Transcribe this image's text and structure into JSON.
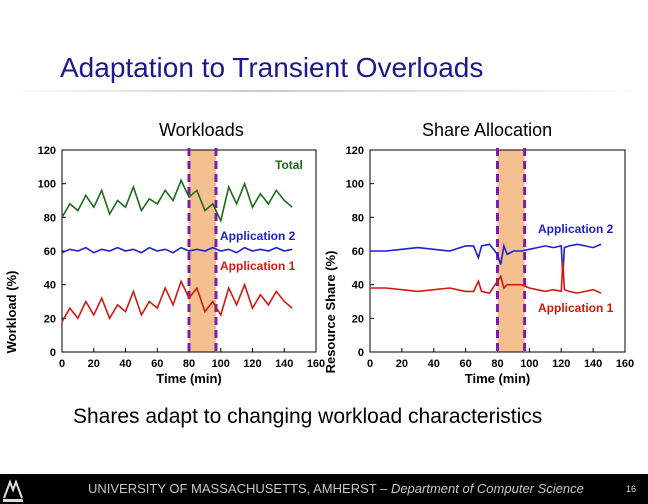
{
  "slide": {
    "title": "Adaptation to Transient Overloads",
    "caption": "Shares adapt to changing workload characteristics",
    "footer": {
      "university": "UNIVERSITY OF MASSACHUSETTS, AMHERST",
      "dash": " – ",
      "department": "Department of Computer Science"
    },
    "page_number": "16"
  },
  "colors": {
    "title": "#1a1a8c",
    "total": "#1a6b1a",
    "app2": "#1e22c8",
    "app1": "#d01a10",
    "highlight": "#f5c08f",
    "marker": "#7a1fa8"
  },
  "chart_data": [
    {
      "type": "line",
      "title": "Workloads",
      "xlabel": "Time (min)",
      "ylabel": "Workload (%)",
      "xlim": [
        0,
        160
      ],
      "ylim": [
        0,
        120
      ],
      "xticks": [
        "0",
        "20",
        "40",
        "60",
        "80",
        "100",
        "120",
        "140",
        "160"
      ],
      "yticks": [
        "0",
        "20",
        "40",
        "60",
        "80",
        "100",
        "120"
      ],
      "highlight_band": [
        80,
        97
      ],
      "series": [
        {
          "name": "Total",
          "color": "#1a6b1a",
          "x": [
            0,
            5,
            10,
            15,
            20,
            25,
            30,
            35,
            40,
            45,
            50,
            55,
            60,
            65,
            70,
            75,
            80,
            85,
            90,
            95,
            100,
            105,
            110,
            115,
            120,
            125,
            130,
            135,
            140,
            145
          ],
          "y": [
            80,
            88,
            84,
            93,
            86,
            96,
            82,
            90,
            86,
            98,
            84,
            91,
            88,
            96,
            90,
            102,
            92,
            96,
            84,
            88,
            78,
            98,
            88,
            100,
            86,
            94,
            88,
            96,
            90,
            86
          ]
        },
        {
          "name": "Application 2",
          "color": "#1e22c8",
          "x": [
            0,
            5,
            10,
            15,
            20,
            25,
            30,
            35,
            40,
            45,
            50,
            55,
            60,
            65,
            70,
            75,
            80,
            85,
            90,
            95,
            100,
            105,
            110,
            115,
            120,
            125,
            130,
            135,
            140,
            145
          ],
          "y": [
            59,
            61,
            60,
            62,
            59,
            61,
            60,
            62,
            60,
            61,
            59,
            62,
            60,
            61,
            59,
            62,
            60,
            61,
            60,
            62,
            60,
            61,
            59,
            62,
            60,
            61,
            60,
            62,
            60,
            61
          ]
        },
        {
          "name": "Application 1",
          "color": "#d01a10",
          "x": [
            0,
            5,
            10,
            15,
            20,
            25,
            30,
            35,
            40,
            45,
            50,
            55,
            60,
            65,
            70,
            75,
            80,
            85,
            90,
            95,
            100,
            105,
            110,
            115,
            120,
            125,
            130,
            135,
            140,
            145
          ],
          "y": [
            18,
            26,
            20,
            30,
            22,
            32,
            20,
            28,
            24,
            36,
            22,
            30,
            26,
            38,
            28,
            42,
            32,
            38,
            24,
            30,
            22,
            38,
            28,
            40,
            26,
            34,
            28,
            36,
            30,
            26
          ]
        }
      ]
    },
    {
      "type": "line",
      "title": "Share Allocation",
      "xlabel": "Time (min)",
      "ylabel": "Resource Share (%)",
      "xlim": [
        0,
        160
      ],
      "ylim": [
        0,
        120
      ],
      "xticks": [
        "0",
        "20",
        "40",
        "60",
        "80",
        "100",
        "120",
        "140",
        "160"
      ],
      "yticks": [
        "0",
        "20",
        "40",
        "60",
        "80",
        "100",
        "120"
      ],
      "highlight_band": [
        80,
        97
      ],
      "series": [
        {
          "name": "Application 2",
          "color": "#1e22c8",
          "x": [
            0,
            10,
            20,
            30,
            40,
            50,
            60,
            65,
            68,
            70,
            75,
            80,
            82,
            84,
            86,
            90,
            95,
            100,
            105,
            110,
            115,
            120,
            121,
            122,
            125,
            130,
            135,
            140,
            145
          ],
          "y": [
            60,
            60,
            61,
            62,
            61,
            60,
            63,
            63,
            56,
            63,
            64,
            58,
            52,
            63,
            58,
            60,
            60,
            61,
            62,
            63,
            62,
            63,
            45,
            62,
            63,
            64,
            63,
            62,
            64
          ]
        },
        {
          "name": "Application 1",
          "color": "#d01a10",
          "x": [
            0,
            10,
            20,
            30,
            40,
            50,
            60,
            65,
            68,
            70,
            75,
            80,
            82,
            84,
            86,
            90,
            95,
            100,
            105,
            110,
            115,
            120,
            121,
            122,
            125,
            130,
            135,
            140,
            145
          ],
          "y": [
            38,
            38,
            37,
            36,
            37,
            38,
            36,
            36,
            42,
            36,
            35,
            42,
            45,
            38,
            40,
            40,
            40,
            38,
            37,
            36,
            37,
            36,
            54,
            37,
            36,
            35,
            36,
            37,
            35
          ]
        }
      ]
    }
  ]
}
